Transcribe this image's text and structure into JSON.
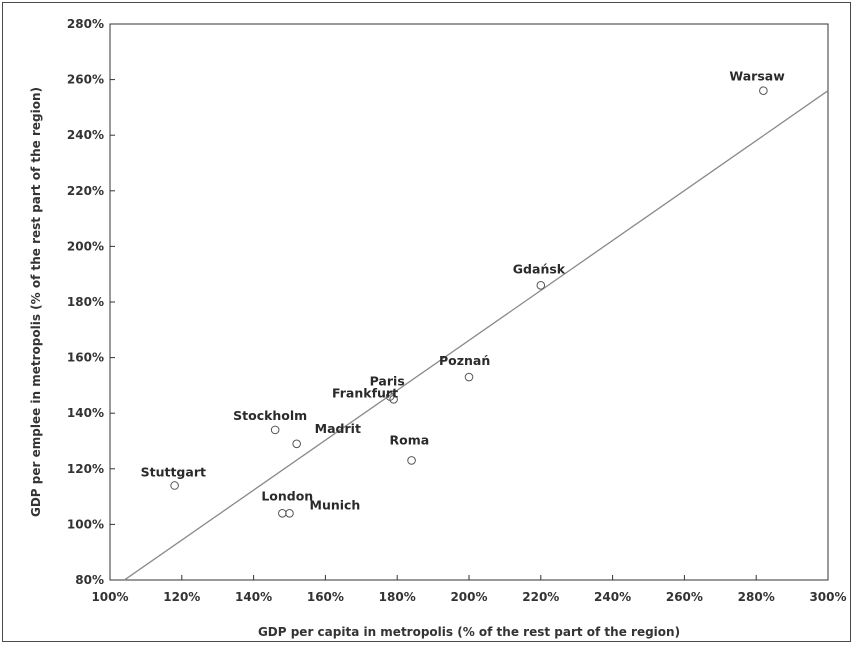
{
  "chart_data": {
    "type": "scatter",
    "title": "",
    "xlabel": "GDP per capita in metropolis (% of the rest part of the region)",
    "ylabel": "GDP per emplee in metropolis (% of the rest part of the region)",
    "xlim": [
      100,
      300
    ],
    "ylim": [
      80,
      280
    ],
    "x_ticks": [
      "100%",
      "120%",
      "140%",
      "160%",
      "180%",
      "200%",
      "220%",
      "240%",
      "260%",
      "280%",
      "300%"
    ],
    "y_ticks": [
      "80%",
      "100%",
      "120%",
      "140%",
      "160%",
      "180%",
      "200%",
      "220%",
      "240%",
      "260%",
      "280%"
    ],
    "grid": false,
    "points": [
      {
        "label": "Warsaw",
        "x": 282,
        "y": 256
      },
      {
        "label": "Gdańsk",
        "x": 220,
        "y": 186
      },
      {
        "label": "Poznań",
        "x": 200,
        "y": 153
      },
      {
        "label": "Paris",
        "x": 179,
        "y": 145
      },
      {
        "label": "Frankfurt",
        "x": 178,
        "y": 146
      },
      {
        "label": "Madrit",
        "x": 152,
        "y": 129
      },
      {
        "label": "Stockholm",
        "x": 146,
        "y": 134
      },
      {
        "label": "Roma",
        "x": 184,
        "y": 123
      },
      {
        "label": "Stuttgart",
        "x": 118,
        "y": 114
      },
      {
        "label": "London",
        "x": 148,
        "y": 104
      },
      {
        "label": "Munich",
        "x": 150,
        "y": 104
      }
    ],
    "trendline": {
      "x": [
        104,
        300
      ],
      "y": [
        80,
        256
      ]
    }
  }
}
